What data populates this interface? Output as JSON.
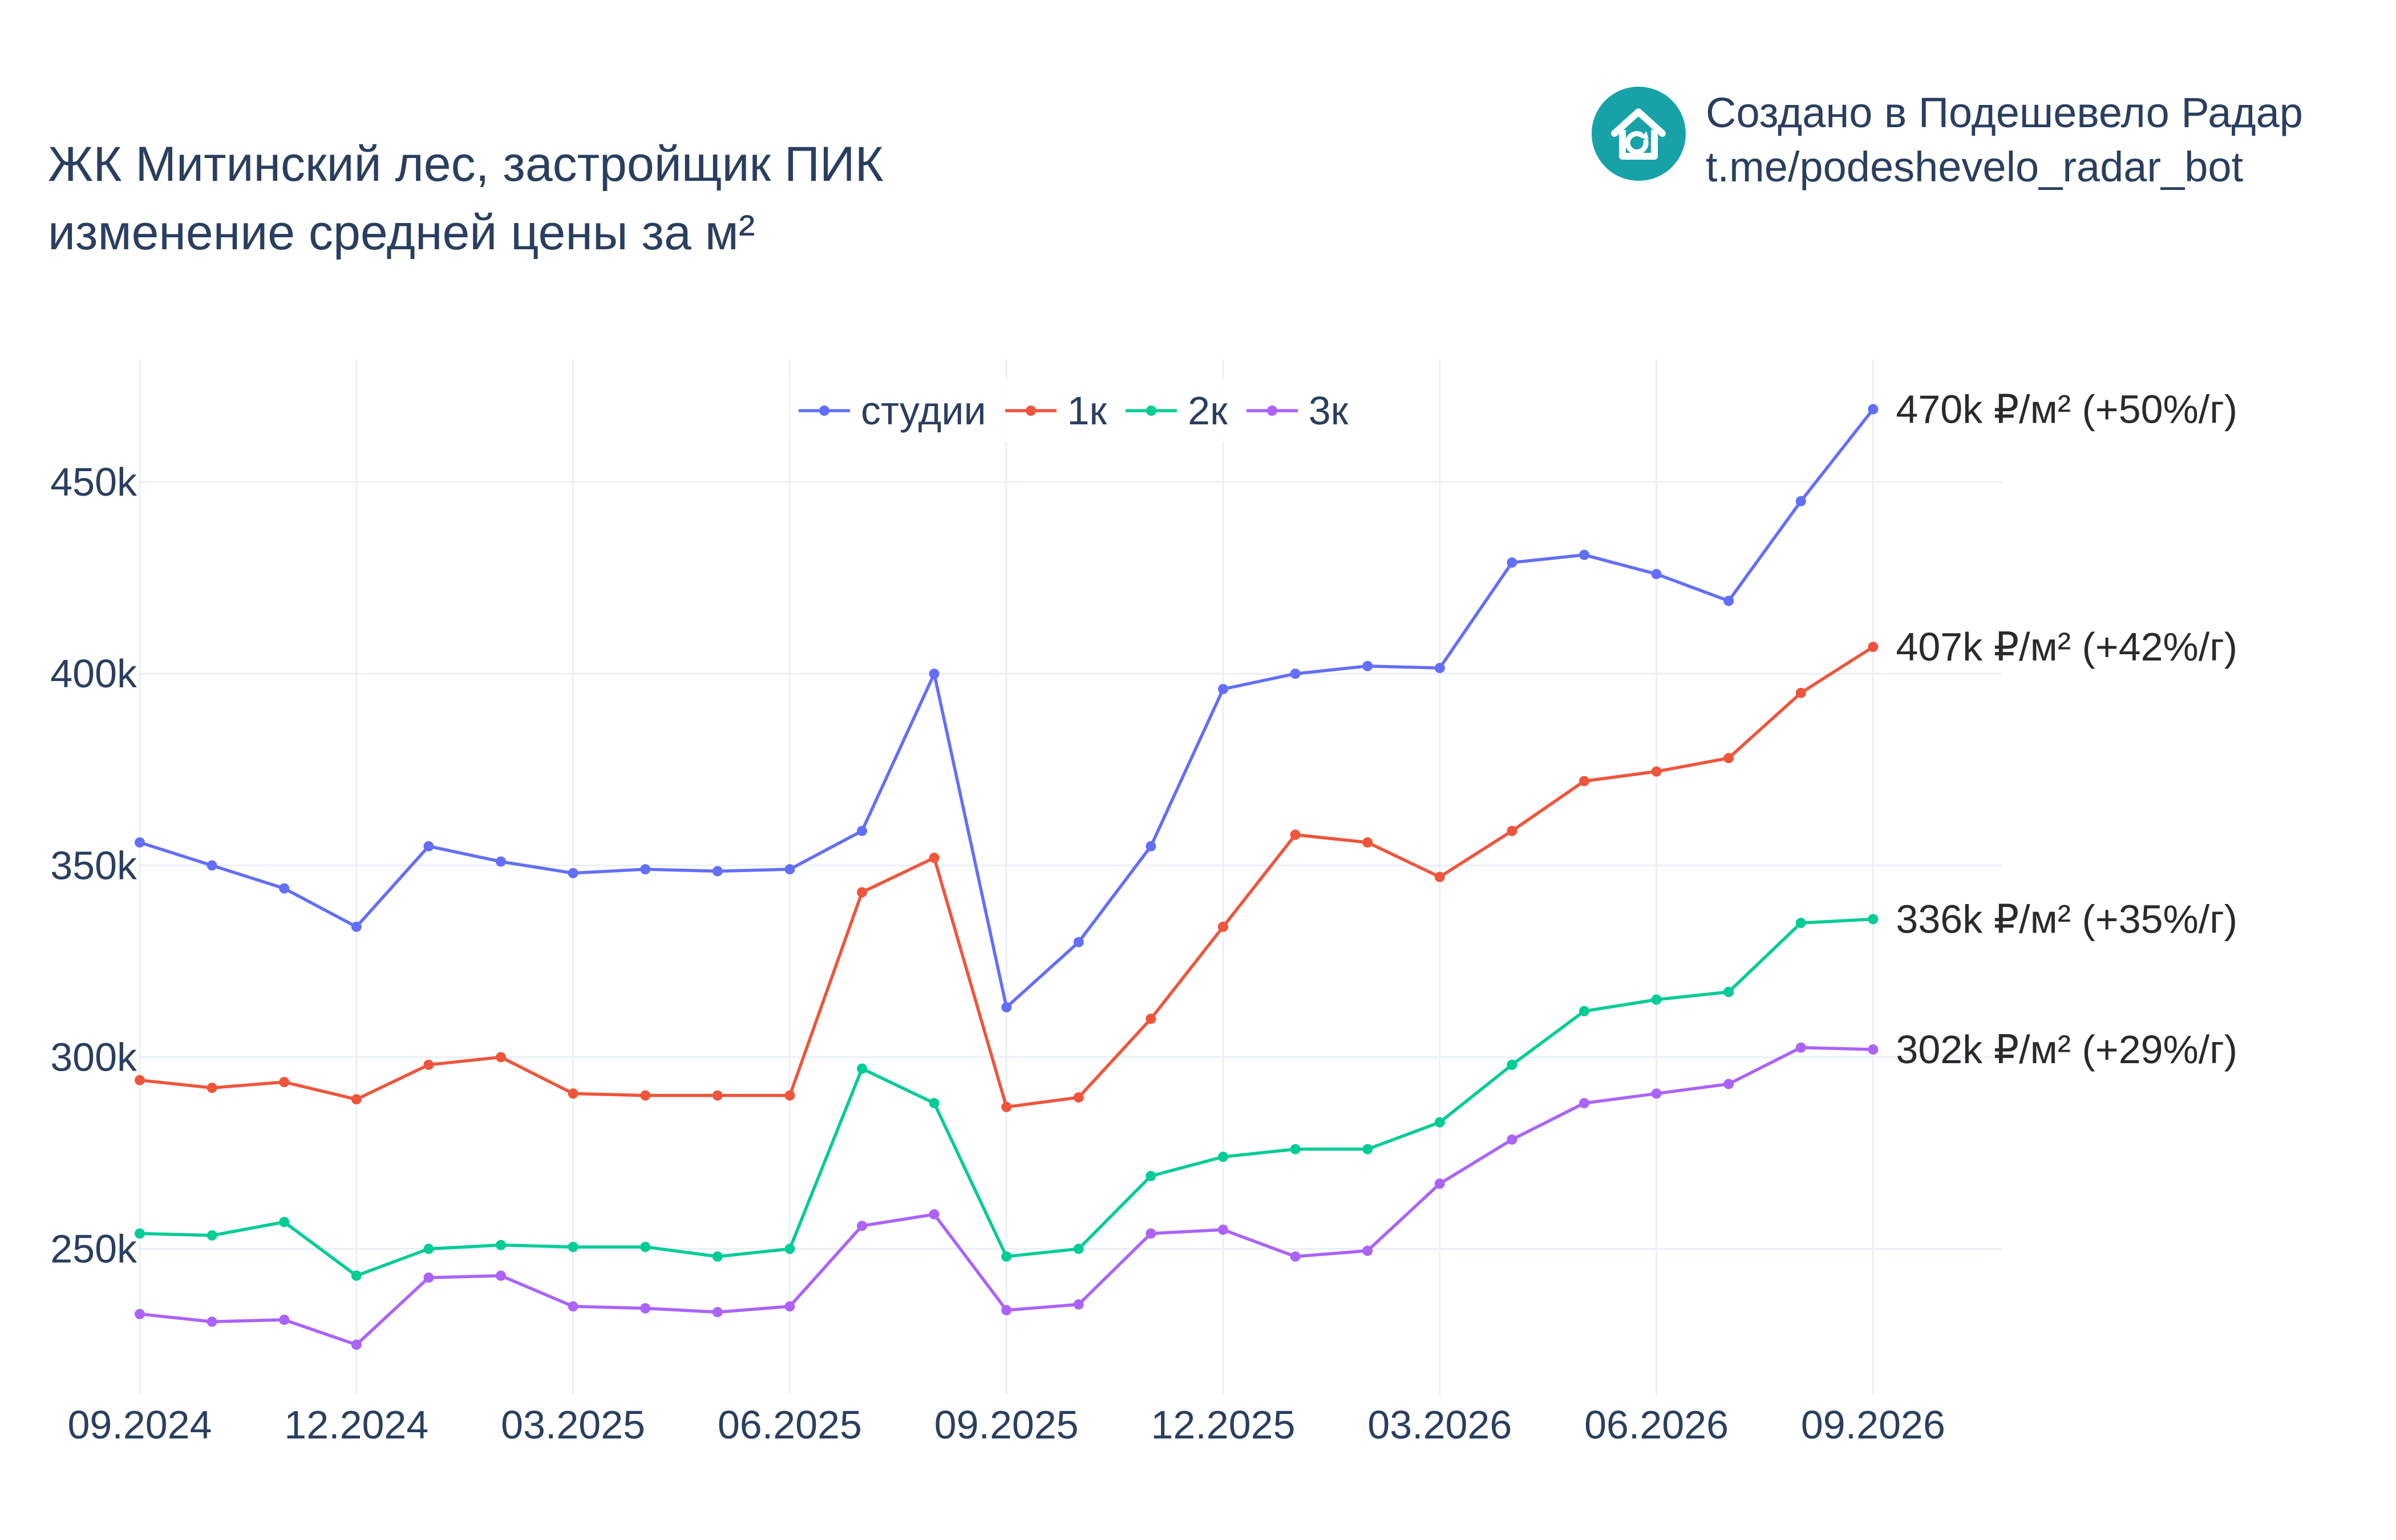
{
  "header": {
    "title_line1": "ЖК Митинский лес, застройщик ПИК",
    "title_line2": "изменение средней цены за м²"
  },
  "brand": {
    "line1": "Создано в Подешевело Радар",
    "line2": "t.me/podeshevelo_radar_bot",
    "icon": "house-refresh-icon",
    "color": "#17a2a8"
  },
  "chart_data": {
    "type": "line",
    "title": "ЖК Митинский лес, застройщик ПИК изменение средней цены за м²",
    "x": [
      "2024-09",
      "2024-10",
      "2024-11",
      "2024-12",
      "2025-01",
      "2025-02",
      "2025-03",
      "2025-04",
      "2025-05",
      "2025-06",
      "2025-07",
      "2025-08",
      "2025-09",
      "2025-10",
      "2025-11",
      "2025-12",
      "2026-01",
      "2026-02",
      "2026-03",
      "2026-04",
      "2026-05",
      "2026-06",
      "2026-07",
      "2026-08",
      "2026-09"
    ],
    "x_ticks": [
      "09.2024",
      "12.2024",
      "03.2025",
      "06.2025",
      "09.2025",
      "12.2025",
      "03.2026",
      "06.2026",
      "09.2026"
    ],
    "y_ticks": [
      "250k",
      "300k",
      "350k",
      "400k",
      "450k"
    ],
    "ylim": [
      212000,
      482000
    ],
    "grid": true,
    "legend_position": "top-center",
    "series": [
      {
        "name": "студии",
        "color": "#636efa",
        "end_label": "470k ₽/м² (+50%/г)",
        "values": [
          356000,
          350000,
          344000,
          334000,
          355000,
          351000,
          348000,
          349000,
          348500,
          349000,
          359000,
          400000,
          313000,
          330000,
          355000,
          396000,
          400000,
          402000,
          401500,
          429000,
          431000,
          426000,
          419000,
          445000,
          469000
        ]
      },
      {
        "name": "1к",
        "color": "#ef553b",
        "end_label": "407k ₽/м² (+42%/г)",
        "values": [
          294000,
          292000,
          293500,
          289000,
          298000,
          300000,
          290500,
          290000,
          290000,
          290000,
          343000,
          352000,
          287000,
          289500,
          310000,
          334000,
          358000,
          356000,
          347000,
          359000,
          372000,
          374500,
          378000,
          395000,
          407000
        ]
      },
      {
        "name": "2к",
        "color": "#00cc96",
        "end_label": "336k ₽/м² (+35%/г)",
        "values": [
          254000,
          253500,
          257000,
          243000,
          250000,
          251000,
          250500,
          250500,
          248000,
          250000,
          297000,
          288000,
          248000,
          250000,
          269000,
          274000,
          276000,
          276000,
          283000,
          298000,
          312000,
          315000,
          317000,
          335000,
          336000
        ]
      },
      {
        "name": "3к",
        "color": "#ab63fa",
        "end_label": "302k ₽/м² (+29%/г)",
        "values": [
          233000,
          231000,
          231500,
          225000,
          242500,
          243000,
          235000,
          234500,
          233500,
          235000,
          256000,
          259000,
          234000,
          235500,
          254000,
          255000,
          248000,
          249500,
          267000,
          278500,
          288000,
          290500,
          293000,
          302500,
          302000
        ]
      }
    ]
  }
}
